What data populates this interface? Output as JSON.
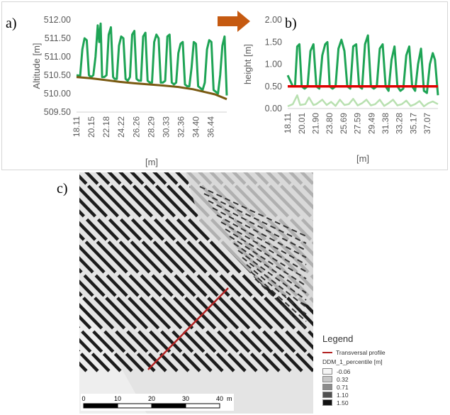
{
  "panels": {
    "a_label": "a)",
    "b_label": "b)",
    "c_label": "c)"
  },
  "colors": {
    "green": "#1ea455",
    "light_green": "#b8e0b0",
    "brown": "#7a5a12",
    "red": "#e00000",
    "arrow": "#c55a11",
    "profile": "#b22222"
  },
  "chart_data": [
    {
      "type": "line",
      "ylabel": "Altitude [m]",
      "xlabel": "[m]",
      "ylim": [
        509.5,
        512.0
      ],
      "yticks": [
        "509.50",
        "510.00",
        "510.50",
        "511.00",
        "511.50",
        "512.00"
      ],
      "x_tick_labels": [
        "18.11",
        "20.15",
        "22.18",
        "24.22",
        "26.26",
        "28.29",
        "30.33",
        "32.36",
        "34.40",
        "36.44"
      ],
      "xlim": [
        18.11,
        38.6
      ],
      "grid": false,
      "series": [
        {
          "style": "surface",
          "color": "green",
          "x": [
            18.11,
            18.6,
            18.9,
            19.2,
            19.5,
            19.8,
            20.1,
            20.4,
            20.7,
            21.0,
            21.2,
            21.4,
            21.6,
            21.9,
            22.2,
            22.5,
            22.8,
            23.1,
            23.3,
            23.6,
            23.9,
            24.2,
            24.5,
            24.8,
            25.1,
            25.4,
            25.7,
            26.0,
            26.3,
            26.6,
            26.9,
            27.2,
            27.5,
            27.8,
            28.1,
            28.4,
            28.7,
            29.0,
            29.3,
            29.6,
            29.9,
            30.2,
            30.5,
            30.8,
            31.1,
            31.4,
            31.7,
            32.0,
            32.3,
            32.6,
            32.9,
            33.2,
            33.5,
            33.8,
            34.1,
            34.4,
            34.7,
            35.0,
            35.3,
            35.6,
            35.9,
            36.2,
            36.5,
            36.8,
            37.1,
            37.4,
            37.7,
            38.0,
            38.3,
            38.6
          ],
          "y": [
            510.5,
            510.48,
            511.2,
            511.5,
            511.45,
            510.5,
            510.45,
            510.5,
            511.0,
            511.85,
            511.4,
            511.9,
            510.45,
            510.45,
            510.5,
            511.6,
            511.8,
            510.45,
            510.4,
            510.4,
            511.3,
            511.55,
            511.5,
            510.4,
            510.35,
            510.45,
            511.6,
            511.7,
            510.4,
            510.35,
            510.35,
            511.55,
            511.65,
            510.35,
            510.3,
            510.3,
            511.4,
            511.6,
            511.5,
            510.3,
            510.3,
            510.35,
            511.55,
            511.6,
            510.3,
            510.25,
            510.3,
            511.1,
            511.35,
            511.4,
            510.25,
            510.2,
            510.2,
            510.7,
            511.4,
            511.35,
            510.2,
            510.15,
            510.1,
            510.3,
            511.2,
            511.45,
            511.4,
            510.1,
            510.05,
            510.0,
            510.5,
            511.3,
            511.55,
            509.95
          ]
        },
        {
          "style": "terrain",
          "color": "brown",
          "x": [
            18.11,
            20.0,
            22.0,
            24.0,
            26.0,
            28.0,
            30.0,
            32.0,
            34.0,
            35.5,
            37.0,
            38.6
          ],
          "y": [
            510.45,
            510.42,
            510.37,
            510.32,
            510.28,
            510.25,
            510.22,
            510.18,
            510.12,
            510.05,
            509.98,
            509.85
          ]
        }
      ]
    },
    {
      "type": "line",
      "ylabel": "height [m]",
      "xlabel": "[m]",
      "ylim": [
        0.0,
        2.0
      ],
      "yticks": [
        "0.00",
        "0.50",
        "1.00",
        "1.50",
        "2.00"
      ],
      "x_tick_labels": [
        "18.11",
        "20.01",
        "21.90",
        "23.80",
        "25.69",
        "27.59",
        "29.49",
        "31.38",
        "33.28",
        "35.17",
        "37.07"
      ],
      "xlim": [
        18.11,
        38.5
      ],
      "grid": false,
      "series": [
        {
          "style": "height",
          "color": "green",
          "x": [
            18.11,
            18.8,
            19.1,
            19.4,
            19.7,
            20.0,
            20.4,
            20.8,
            21.2,
            21.6,
            22.0,
            22.4,
            22.8,
            23.2,
            23.5,
            23.8,
            24.2,
            24.6,
            25.0,
            25.4,
            25.8,
            26.2,
            26.6,
            27.0,
            27.4,
            27.8,
            28.2,
            28.6,
            29.0,
            29.4,
            29.8,
            30.2,
            30.6,
            31.0,
            31.4,
            31.8,
            32.2,
            32.6,
            33.0,
            33.4,
            33.8,
            34.2,
            34.6,
            35.0,
            35.4,
            35.8,
            36.2,
            36.6,
            37.0,
            37.4,
            37.8,
            38.1,
            38.5
          ],
          "y": [
            0.75,
            0.5,
            0.5,
            1.4,
            1.45,
            0.5,
            0.45,
            0.5,
            1.3,
            1.45,
            0.5,
            0.45,
            1.2,
            1.45,
            1.5,
            0.5,
            0.45,
            0.5,
            1.35,
            1.55,
            1.3,
            0.5,
            0.45,
            1.4,
            1.45,
            0.5,
            0.45,
            1.45,
            1.65,
            0.5,
            0.45,
            0.5,
            1.35,
            1.45,
            0.5,
            0.4,
            1.1,
            1.4,
            0.5,
            0.4,
            0.45,
            1.2,
            1.4,
            0.5,
            0.4,
            1.0,
            1.35,
            0.4,
            0.35,
            1.0,
            1.25,
            1.1,
            0.3
          ]
        },
        {
          "style": "ground",
          "color": "light_green",
          "x": [
            18.11,
            18.8,
            19.4,
            19.8,
            20.5,
            21.0,
            21.6,
            22.0,
            22.8,
            23.4,
            24.0,
            24.6,
            25.2,
            25.8,
            26.4,
            27.0,
            27.6,
            28.2,
            28.8,
            29.4,
            30.0,
            30.6,
            31.2,
            31.8,
            32.4,
            33.0,
            33.6,
            34.2,
            34.8,
            35.4,
            36.0,
            36.6,
            37.2,
            37.8,
            38.5
          ],
          "y": [
            0.05,
            0.1,
            0.3,
            0.08,
            0.1,
            0.25,
            0.08,
            0.1,
            0.2,
            0.08,
            0.15,
            0.06,
            0.2,
            0.08,
            0.1,
            0.22,
            0.07,
            0.12,
            0.2,
            0.07,
            0.1,
            0.2,
            0.06,
            0.12,
            0.2,
            0.07,
            0.1,
            0.18,
            0.06,
            0.1,
            0.17,
            0.05,
            0.12,
            0.16,
            0.1
          ]
        },
        {
          "style": "threshold",
          "color": "red",
          "x": [
            18.11,
            38.5
          ],
          "y": [
            0.5,
            0.5
          ]
        }
      ]
    }
  ],
  "map": {
    "scale_ticks": [
      "0",
      "10",
      "20",
      "30",
      "40"
    ],
    "scale_unit": "m",
    "legend": {
      "title": "Legend",
      "profile_label": "Transversal profile",
      "layer_label": "DDM_1_percentile [m]",
      "classes": [
        {
          "label": "-0.06",
          "color": "#f5f5f5"
        },
        {
          "label": "0.32",
          "color": "#c8c8c8"
        },
        {
          "label": "0.71",
          "color": "#8c8c8c"
        },
        {
          "label": "1.10",
          "color": "#505050"
        },
        {
          "label": "1.50",
          "color": "#111111"
        }
      ]
    }
  }
}
